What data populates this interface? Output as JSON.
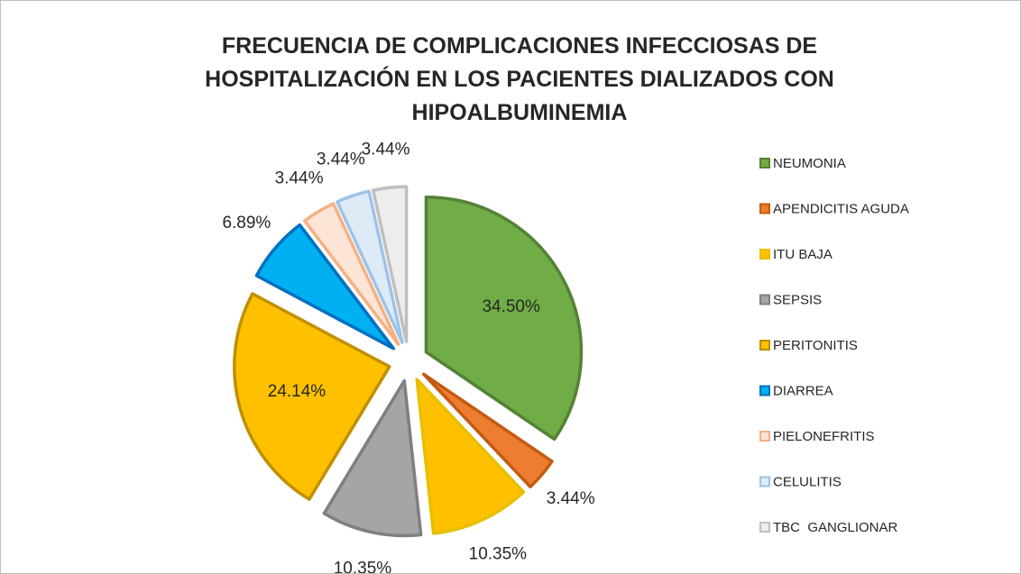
{
  "chart_data": {
    "type": "pie",
    "title": "FRECUENCIA DE COMPLICACIONES INFECCIOSAS DE HOSPITALIZACIÓN EN LOS PACIENTES DIALIZADOS CON HIPOALBUMINEMIA",
    "categories": [
      "NEUMONIA",
      "APENDICITIS AGUDA",
      "ITU BAJA",
      "SEPSIS",
      "PERITONITIS",
      "DIARREA",
      "PIELONEFRITIS",
      "CELULITIS",
      "TBC  GANGLIONAR"
    ],
    "values": [
      34.5,
      3.44,
      10.35,
      10.35,
      24.14,
      6.89,
      3.44,
      3.44,
      3.44
    ],
    "value_labels": [
      "34.50%",
      "3.44%",
      "10.35%",
      "10.35%",
      "24.14%",
      "6.89%",
      "3.44%",
      "3.44%",
      "3.44%"
    ],
    "colors": [
      "#70ad47",
      "#ed7d31",
      "#ffc000",
      "#a5a5a5",
      "#ffc000",
      "#00b0f0",
      "#fce4d6",
      "#ddebf7",
      "#ededed"
    ],
    "edge_colors": [
      "#548235",
      "#c55a11",
      "#e6c000",
      "#7f7f7f",
      "#bf9000",
      "#0070c0",
      "#f4b183",
      "#9dc3e6",
      "#bfbfbf"
    ],
    "legend": "right"
  }
}
